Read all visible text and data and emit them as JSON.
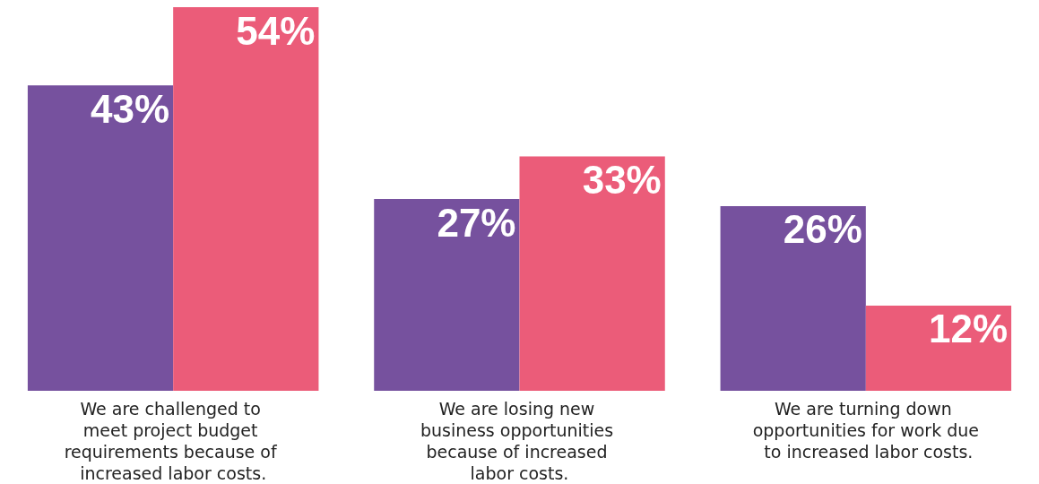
{
  "chart_data": {
    "type": "bar",
    "categories": [
      "We are challenged to meet project budget requirements because of increased labor costs.",
      "We are losing new business opportunities because of increased labor costs.",
      "We are turning down opportunities for work due to increased labor costs."
    ],
    "series": [
      {
        "color": "#76519e",
        "values": [
          43,
          27,
          26
        ],
        "value_labels": [
          "43%",
          "27%",
          "26%"
        ]
      },
      {
        "color": "#eb5c79",
        "values": [
          54,
          33,
          12
        ],
        "value_labels": [
          "54%",
          "33%",
          "12%"
        ]
      }
    ]
  }
}
